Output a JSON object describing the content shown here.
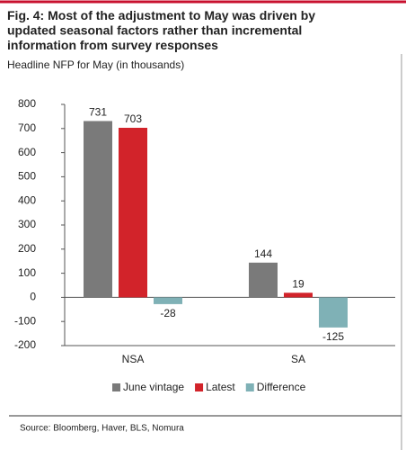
{
  "chart_data": {
    "type": "bar",
    "title": "Fig. 4: Most of the adjustment to May was driven by updated seasonal factors rather than incremental information from survey responses",
    "subtitle": "Headline NFP for May (in thousands)",
    "categories": [
      "NSA",
      "SA"
    ],
    "series": [
      {
        "name": "June vintage",
        "color": "#7a7a7a",
        "values": [
          731,
          144
        ]
      },
      {
        "name": "Latest",
        "color": "#d2232a",
        "values": [
          703,
          19
        ]
      },
      {
        "name": "Difference",
        "color": "#7fb1b6",
        "values": [
          -28,
          -125
        ]
      }
    ],
    "ylim": [
      -200,
      800
    ],
    "yticks": [
      -200,
      -100,
      0,
      100,
      200,
      300,
      400,
      500,
      600,
      700,
      800
    ],
    "legend": "bottom",
    "source": "Source: Bloomberg, Haver, BLS, Nomura"
  }
}
